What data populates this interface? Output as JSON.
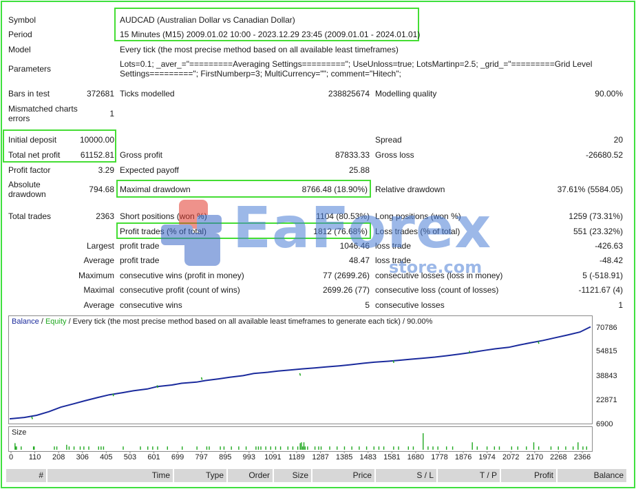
{
  "report": {
    "symbol": {
      "label": "Symbol",
      "value": "AUDCAD (Australian Dollar vs Canadian Dollar)"
    },
    "period": {
      "label": "Period",
      "value": "15 Minutes (M15) 2009.01.02 10:00 - 2023.12.29 23:45 (2009.01.01 - 2024.01.01)"
    },
    "model": {
      "label": "Model",
      "value": "Every tick (the most precise method based on all available least timeframes)"
    },
    "parameters": {
      "label": "Parameters",
      "line1": "Lots=0.1; _aver_=\"=========Averaging Settings=========\"; UseUnloss=true; LotsMartinp=2.5; _grid_=\"=========Grid Level",
      "line2": "Settings=========\"; FirstNumberp=3; MultiCurrency=\"\"; comment=\"Hitech\";"
    },
    "bars_in_test": {
      "label": "Bars in test",
      "value": "372681"
    },
    "ticks_modelled": {
      "label": "Ticks modelled",
      "value": "238825674"
    },
    "modelling_quality": {
      "label": "Modelling quality",
      "value": "90.00%"
    },
    "mismatched": {
      "label1": "Mismatched charts",
      "label2": "errors",
      "value": "1"
    },
    "initial_deposit": {
      "label": "Initial deposit",
      "value": "10000.00"
    },
    "spread": {
      "label": "Spread",
      "value": "20"
    },
    "total_net_profit": {
      "label": "Total net profit",
      "value": "61152.81"
    },
    "gross_profit": {
      "label": "Gross profit",
      "value": "87833.33"
    },
    "gross_loss": {
      "label": "Gross loss",
      "value": "-26680.52"
    },
    "profit_factor": {
      "label": "Profit factor",
      "value": "3.29"
    },
    "expected_payoff": {
      "label": "Expected payoff",
      "value": "25.88"
    },
    "absolute_drawdown": {
      "label1": "Absolute",
      "label2": "drawdown",
      "value": "794.68"
    },
    "maximal_drawdown": {
      "label": "Maximal drawdown",
      "value": "8766.48 (18.90%)"
    },
    "relative_drawdown": {
      "label": "Relative drawdown",
      "value": "37.61% (5584.05)"
    },
    "total_trades": {
      "label": "Total trades",
      "value": "2363"
    },
    "short_positions": {
      "label": "Short positions (won %)",
      "value": "1104 (80.53%)"
    },
    "long_positions": {
      "label": "Long positions (won %)",
      "value": "1259 (73.31%)"
    },
    "profit_trades": {
      "label": "Profit trades (% of total)",
      "value": "1812 (76.68%)"
    },
    "loss_trades": {
      "label": "Loss trades (% of total)",
      "value": "551 (23.32%)"
    },
    "largest": {
      "label": "Largest",
      "profit_label": "profit trade",
      "profit": "1046.46",
      "loss_label": "loss trade",
      "loss": "-426.63"
    },
    "average": {
      "label": "Average",
      "profit_label": "profit trade",
      "profit": "48.47",
      "loss_label": "loss trade",
      "loss": "-48.42"
    },
    "maximum": {
      "label": "Maximum",
      "wins_label": "consecutive wins (profit in money)",
      "wins": "77 (2699.26)",
      "losses_label": "consecutive losses (loss in money)",
      "losses": "5 (-518.91)"
    },
    "maximal": {
      "label": "Maximal",
      "profit_label": "consecutive profit (count of wins)",
      "profit": "2699.26 (77)",
      "loss_label": "consecutive loss (count of losses)",
      "loss": "-1121.67 (4)"
    },
    "average_consec": {
      "label": "Average",
      "wins_label": "consecutive wins",
      "wins": "5",
      "losses_label": "consecutive losses",
      "losses": "1"
    }
  },
  "watermark": {
    "text": "EaForex",
    "sub": "store.com"
  },
  "chart_data": {
    "type": "line",
    "legend": {
      "balance": "Balance",
      "sep": " / ",
      "equity": "Equity",
      "desc": " / Every tick (the most precise method based on all available least timeframes to generate each tick) / 90.00%"
    },
    "y_ticks": [
      "70786",
      "54815",
      "38843",
      "22871",
      "6900"
    ],
    "ylim": [
      6900,
      70786
    ],
    "x_ticks": [
      "0",
      "110",
      "208",
      "306",
      "405",
      "503",
      "601",
      "699",
      "797",
      "895",
      "993",
      "1091",
      "1189",
      "1287",
      "1385",
      "1483",
      "1581",
      "1680",
      "1778",
      "1876",
      "1974",
      "2072",
      "2170",
      "2268",
      "2366"
    ],
    "xlim": [
      0,
      2363
    ],
    "size_label": "Size",
    "series": [
      {
        "name": "Balance",
        "x": [
          0,
          60,
          110,
          160,
          208,
          260,
          306,
          360,
          405,
          460,
          503,
          560,
          601,
          660,
          699,
          760,
          797,
          850,
          895,
          950,
          993,
          1050,
          1091,
          1140,
          1189,
          1240,
          1287,
          1340,
          1385,
          1440,
          1483,
          1540,
          1581,
          1630,
          1680,
          1730,
          1778,
          1830,
          1876,
          1930,
          1974,
          2030,
          2072,
          2120,
          2170,
          2220,
          2268,
          2320,
          2363
        ],
        "values": [
          10000,
          10900,
          12300,
          14700,
          17600,
          19800,
          21800,
          24000,
          25700,
          27100,
          28300,
          29500,
          31100,
          32100,
          33200,
          34000,
          35000,
          36100,
          37200,
          38200,
          39600,
          40400,
          41200,
          41900,
          42600,
          43200,
          43900,
          44600,
          45300,
          46300,
          47000,
          47600,
          48200,
          48900,
          49600,
          50300,
          51200,
          52300,
          53300,
          54700,
          55700,
          56700,
          58200,
          59700,
          61200,
          63000,
          64700,
          66700,
          70100
        ]
      },
      {
        "name": "Equity",
        "x": [
          90,
          420,
          600,
          780,
          1180,
          1560,
          1870,
          2150
        ],
        "values": [
          9800,
          24800,
          30300,
          35500,
          38200,
          46500,
          52800,
          59000
        ]
      }
    ],
    "size_bars": {
      "x": [
        20,
        22,
        26,
        45,
        95,
        98,
        180,
        190,
        230,
        240,
        260,
        285,
        300,
        320,
        360,
        370,
        380,
        460,
        530,
        560,
        580,
        600,
        640,
        700,
        760,
        800,
        810,
        855,
        870,
        900,
        930,
        960,
        1000,
        1010,
        1020,
        1040,
        1060,
        1080,
        1100,
        1130,
        1150,
        1170,
        1180,
        1185,
        1190,
        1195,
        1200,
        1210,
        1240,
        1255,
        1265,
        1300,
        1330,
        1360,
        1390,
        1420,
        1450,
        1480,
        1500,
        1520,
        1560,
        1580,
        1620,
        1640,
        1680,
        1700,
        1720,
        1740,
        1775,
        1800,
        1880,
        1900,
        1940,
        1970,
        1990,
        2040,
        2065,
        2100,
        2130,
        2150,
        2200,
        2230,
        2260,
        2290,
        2310,
        2330,
        2345
      ],
      "values": [
        0.4,
        0.2,
        0.2,
        0.2,
        0.2,
        0.2,
        0.2,
        0.2,
        0.3,
        0.2,
        0.2,
        0.2,
        0.2,
        0.2,
        0.2,
        0.2,
        0.2,
        0.2,
        0.2,
        0.2,
        0.2,
        0.2,
        0.2,
        0.2,
        0.2,
        0.2,
        0.2,
        0.2,
        0.2,
        0.2,
        0.2,
        0.2,
        0.2,
        0.2,
        0.2,
        0.2,
        0.2,
        0.2,
        0.2,
        0.2,
        0.2,
        0.2,
        0.4,
        0.45,
        0.2,
        0.45,
        0.2,
        0.2,
        0.2,
        0.2,
        0.2,
        0.2,
        0.2,
        0.2,
        0.2,
        0.2,
        0.2,
        0.2,
        0.2,
        0.2,
        0.2,
        0.2,
        0.2,
        0.2,
        1.0,
        0.2,
        0.2,
        0.2,
        0.2,
        0.2,
        0.45,
        0.2,
        0.2,
        0.2,
        0.2,
        0.2,
        0.2,
        0.2,
        0.45,
        0.2,
        0.2,
        0.2,
        0.2,
        0.2,
        0.45,
        0.2,
        0.2
      ]
    }
  },
  "table_header": [
    "#",
    "Time",
    "Type",
    "Order",
    "Size",
    "Price",
    "S / L",
    "T / P",
    "Profit",
    "Balance"
  ],
  "colors": {
    "balance": "#1a2a9c",
    "equity": "#1fa81f",
    "highlight": "#44dd33",
    "frame": "#3ee03e",
    "size_bar": "#1fa81f",
    "watermark": "#4d7fd6"
  }
}
